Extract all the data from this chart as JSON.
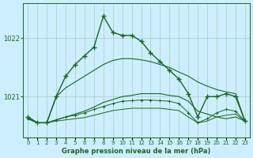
{
  "title": "Graphe pression niveau de la mer (hPa)",
  "background_color": "#cceeff",
  "grid_color": "#aaccbb",
  "line_color": "#1a6620",
  "x_labels": [
    "0",
    "1",
    "2",
    "3",
    "4",
    "5",
    "6",
    "7",
    "8",
    "9",
    "10",
    "11",
    "12",
    "13",
    "14",
    "15",
    "16",
    "17",
    "18",
    "19",
    "20",
    "21",
    "22",
    "23"
  ],
  "yticks": [
    1021,
    1022
  ],
  "ylim": [
    1020.3,
    1022.6
  ],
  "series": [
    {
      "values": [
        1020.65,
        1020.55,
        1020.55,
        1021.0,
        1021.35,
        1021.55,
        1021.7,
        1021.85,
        1022.38,
        1022.1,
        1022.05,
        1022.05,
        1021.95,
        1021.75,
        1021.6,
        1021.45,
        1021.3,
        1021.05,
        1020.65,
        1021.0,
        1021.0,
        1021.05,
        1021.0,
        1020.58
      ],
      "lw": 1.0,
      "marker": "+",
      "ms": 4,
      "mew": 1.0
    },
    {
      "values": [
        1020.65,
        1020.55,
        1020.55,
        1021.0,
        1021.15,
        1021.25,
        1021.35,
        1021.45,
        1021.55,
        1021.62,
        1021.65,
        1021.65,
        1021.63,
        1021.6,
        1021.55,
        1021.5,
        1021.42,
        1021.35,
        1021.25,
        1021.18,
        1021.12,
        1021.08,
        1021.05,
        1020.58
      ],
      "lw": 0.8,
      "marker": null,
      "ms": 0,
      "mew": 0
    },
    {
      "values": [
        1020.62,
        1020.55,
        1020.55,
        1020.6,
        1020.65,
        1020.7,
        1020.75,
        1020.82,
        1020.9,
        1020.95,
        1021.0,
        1021.02,
        1021.05,
        1021.05,
        1021.05,
        1021.02,
        1021.0,
        1020.92,
        1020.75,
        1020.7,
        1020.65,
        1020.62,
        1020.65,
        1020.58
      ],
      "lw": 0.8,
      "marker": null,
      "ms": 0,
      "mew": 0
    },
    {
      "values": [
        1020.62,
        1020.55,
        1020.55,
        1020.6,
        1020.65,
        1020.68,
        1020.72,
        1020.78,
        1020.83,
        1020.88,
        1020.92,
        1020.93,
        1020.94,
        1020.94,
        1020.93,
        1020.92,
        1020.88,
        1020.72,
        1020.55,
        1020.62,
        1020.72,
        1020.78,
        1020.75,
        1020.58
      ],
      "lw": 0.7,
      "marker": "+",
      "ms": 3,
      "mew": 0.7
    },
    {
      "values": [
        1020.62,
        1020.55,
        1020.55,
        1020.58,
        1020.6,
        1020.62,
        1020.64,
        1020.68,
        1020.72,
        1020.76,
        1020.78,
        1020.8,
        1020.8,
        1020.8,
        1020.8,
        1020.78,
        1020.76,
        1020.65,
        1020.55,
        1020.58,
        1020.65,
        1020.68,
        1020.7,
        1020.58
      ],
      "lw": 0.7,
      "marker": null,
      "ms": 0,
      "mew": 0
    }
  ]
}
